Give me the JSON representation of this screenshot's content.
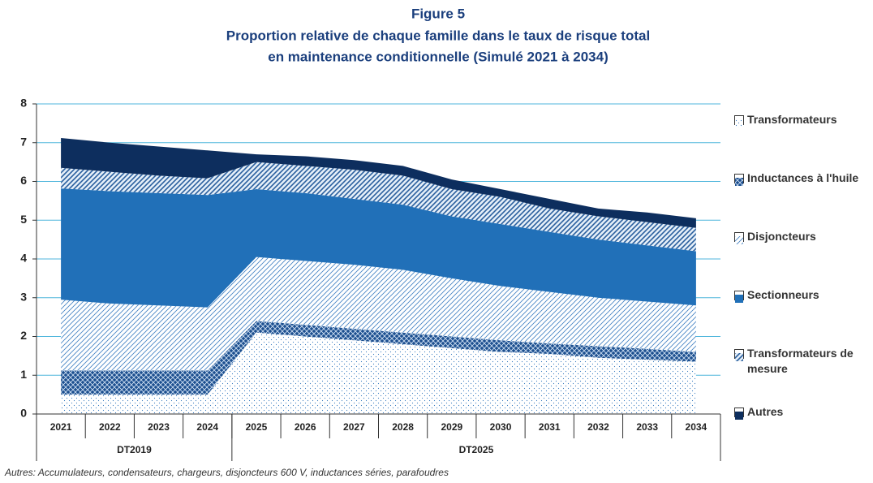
{
  "chart_data": {
    "type": "stacked_area",
    "title": "Figure 5",
    "subtitle": [
      "Proportion relative de chaque famille dans le taux de risque total",
      "en maintenance conditionnelle (Simulé 2021 à 2034)"
    ],
    "categories": [
      "2021",
      "2022",
      "2023",
      "2024",
      "2025",
      "2026",
      "2027",
      "2028",
      "2029",
      "2030",
      "2031",
      "2032",
      "2033",
      "2034"
    ],
    "groups": [
      {
        "label": "DT2019",
        "span": 4
      },
      {
        "label": "DT2025",
        "span": 10
      }
    ],
    "series": [
      {
        "name": "Transformateurs",
        "color": "#3a7cc0",
        "fill_style": "dots",
        "values": [
          0.5,
          0.5,
          0.5,
          0.5,
          2.1,
          2.0,
          1.9,
          1.8,
          1.7,
          1.6,
          1.55,
          1.45,
          1.4,
          1.35
        ]
      },
      {
        "name": "Inductances à l'huile",
        "color": "#1c4f8f",
        "fill_style": "crosshatch",
        "values": [
          0.62,
          0.62,
          0.62,
          0.62,
          0.3,
          0.3,
          0.3,
          0.3,
          0.3,
          0.3,
          0.27,
          0.3,
          0.28,
          0.25
        ]
      },
      {
        "name": "Disjoncteurs",
        "color": "#3f7fc2",
        "fill_style": "hatch",
        "values": [
          1.83,
          1.73,
          1.68,
          1.63,
          1.65,
          1.65,
          1.65,
          1.62,
          1.5,
          1.4,
          1.33,
          1.25,
          1.22,
          1.2
        ]
      },
      {
        "name": "Sectionneurs",
        "color": "#2170b8",
        "fill_style": "solid",
        "values": [
          2.87,
          2.9,
          2.9,
          2.9,
          1.75,
          1.75,
          1.7,
          1.68,
          1.6,
          1.6,
          1.55,
          1.5,
          1.45,
          1.4
        ]
      },
      {
        "name": "Transformateurs de mesure",
        "color": "#2a5f9e",
        "fill_style": "hatch_bold",
        "values": [
          0.53,
          0.5,
          0.45,
          0.43,
          0.7,
          0.7,
          0.75,
          0.75,
          0.7,
          0.7,
          0.6,
          0.6,
          0.6,
          0.6
        ]
      },
      {
        "name": "Autres",
        "color": "#0d2e5e",
        "fill_style": "solid",
        "values": [
          0.77,
          0.75,
          0.75,
          0.72,
          0.2,
          0.25,
          0.25,
          0.25,
          0.25,
          0.2,
          0.25,
          0.2,
          0.25,
          0.25
        ]
      }
    ],
    "ylim": [
      0,
      8
    ],
    "yticks": [
      0,
      1,
      2,
      3,
      4,
      5,
      6,
      7,
      8
    ],
    "grid": true,
    "legend": "right",
    "note": "Autres: Accumulateurs, condensateurs, chargeurs, disjoncteurs 600 V, inductances séries, parafoudres"
  }
}
